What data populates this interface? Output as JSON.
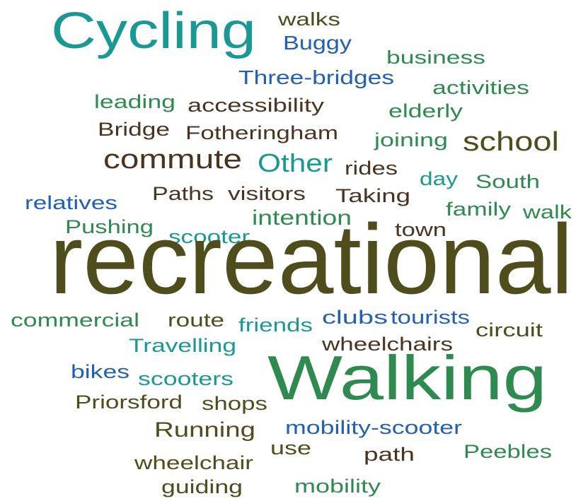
{
  "words": [
    "Cycling",
    "walks",
    "Buggy",
    "business",
    "Three-bridges",
    "activities",
    "leading",
    "accessibility",
    "elderly",
    "Bridge",
    "Fotheringham",
    "joining",
    "school",
    "commute",
    "Other",
    "rides",
    "day",
    "South",
    "relatives",
    "Paths",
    "visitors",
    "Taking",
    "family",
    "walk",
    "intention",
    "Pushing",
    "scooter",
    "town",
    "recreational",
    "commercial",
    "route",
    "friends",
    "clubs",
    "tourists",
    "circuit",
    "Travelling",
    "wheelchairs",
    "bikes",
    "scooters",
    "Walking",
    "Priorsford",
    "shops",
    "Running",
    "mobility-scooter",
    "use",
    "path",
    "Peebles",
    "wheelchair",
    "guiding",
    "mobility"
  ]
}
